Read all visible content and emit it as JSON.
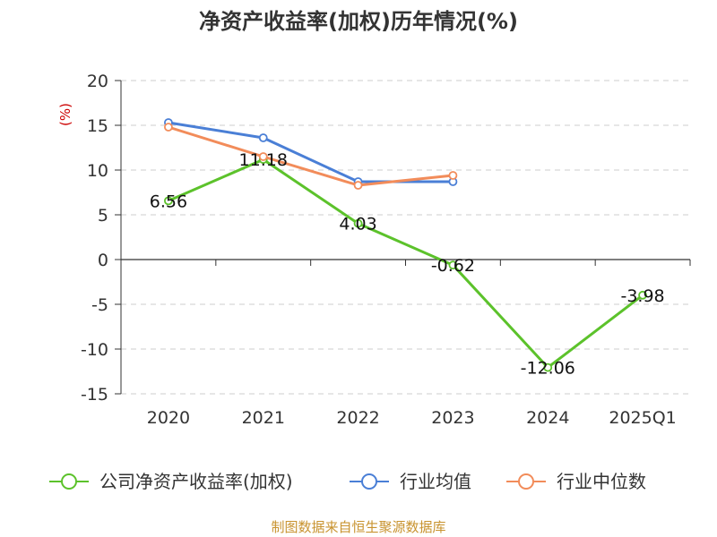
{
  "chart_data": {
    "type": "line",
    "title": "净资产收益率(加权)历年情况(%)",
    "ylabel": "(%)",
    "xlabel": "",
    "ylim": [
      -15,
      20
    ],
    "yticks": [
      20,
      15,
      10,
      5,
      0,
      -5,
      -10,
      -15
    ],
    "categories": [
      "2020",
      "2021",
      "2022",
      "2023",
      "2024",
      "2025Q1"
    ],
    "grid": true,
    "legend_position": "bottom",
    "series": [
      {
        "name": "公司净资产收益率(加权)",
        "color": "#5cc22b",
        "values": [
          6.56,
          11.18,
          4.03,
          -0.62,
          -12.06,
          -3.98
        ],
        "labels": [
          "6.56",
          "11.18",
          "4.03",
          "-0.62",
          "-12.06",
          "-3.98"
        ]
      },
      {
        "name": "行业均值",
        "color": "#4a7fd6",
        "values": [
          15.3,
          13.6,
          8.7,
          8.7,
          null,
          null
        ]
      },
      {
        "name": "行业中位数",
        "color": "#f28c5a",
        "values": [
          14.8,
          11.5,
          8.3,
          9.4,
          null,
          null
        ]
      }
    ]
  },
  "source": "制图数据来自恒生聚源数据库"
}
